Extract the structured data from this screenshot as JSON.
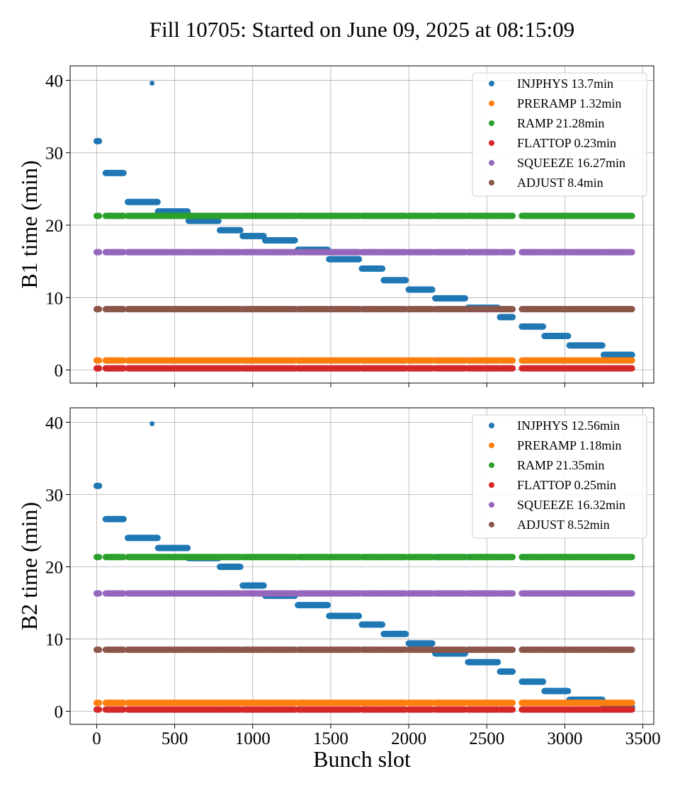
{
  "chart_data": {
    "type": "scatter",
    "title": "Fill 10705: Started on June 09, 2025 at 08:15:09",
    "xlabel": "Bunch slot",
    "xlim": [
      -170,
      3570
    ],
    "x_ticks": [
      0,
      500,
      1000,
      1500,
      2000,
      2500,
      3000,
      3500
    ],
    "grid": true,
    "legend_position": "top-right",
    "trains": [
      [
        0,
        15
      ],
      [
        58,
        172
      ],
      [
        200,
        390
      ],
      [
        394,
        582
      ],
      [
        590,
        780
      ],
      [
        790,
        920
      ],
      [
        936,
        1070
      ],
      [
        1080,
        1270
      ],
      [
        1290,
        1480
      ],
      [
        1490,
        1680
      ],
      [
        1700,
        1830
      ],
      [
        1840,
        1980
      ],
      [
        2000,
        2150
      ],
      [
        2170,
        2360
      ],
      [
        2380,
        2570
      ],
      [
        2585,
        2665
      ],
      [
        2725,
        2860
      ],
      [
        2870,
        3020
      ],
      [
        3030,
        3240
      ],
      [
        3250,
        3430
      ]
    ],
    "panels": [
      {
        "ylabel": "B1 time (min)",
        "ylim": [
          -1.8,
          42
        ],
        "y_ticks": [
          0,
          10,
          20,
          30,
          40
        ],
        "series": [
          {
            "name": "INJPHYS 13.7min",
            "color": "#1f77b4",
            "values": [
              31.6,
              27.2,
              23.2,
              21.9,
              20.6,
              19.3,
              18.5,
              17.9,
              16.6,
              15.3,
              14.0,
              12.4,
              11.1,
              9.9,
              8.6,
              7.3,
              6.0,
              4.7,
              3.4,
              2.1
            ],
            "outliers": [
              [
                355,
                39.6
              ]
            ]
          },
          {
            "name": "PRERAMP 1.32min",
            "color": "#ff7f0e",
            "values": [
              1.32
            ]
          },
          {
            "name": "RAMP 21.28min",
            "color": "#2ca02c",
            "values": [
              21.28
            ]
          },
          {
            "name": "FLATTOP 0.23min",
            "color": "#d62728",
            "values": [
              0.23
            ]
          },
          {
            "name": "SQUEEZE 16.27min",
            "color": "#9467bd",
            "values": [
              16.27
            ]
          },
          {
            "name": "ADJUST 8.4min",
            "color": "#8c564b",
            "values": [
              8.4
            ]
          }
        ]
      },
      {
        "ylabel": "B2 time (min)",
        "ylim": [
          -1.8,
          42
        ],
        "y_ticks": [
          0,
          10,
          20,
          30,
          40
        ],
        "series": [
          {
            "name": "INJPHYS 12.56min",
            "color": "#1f77b4",
            "values": [
              31.2,
              26.6,
              24.0,
              22.6,
              21.2,
              20.0,
              17.4,
              16.0,
              14.7,
              13.2,
              12.0,
              10.7,
              9.4,
              8.0,
              6.8,
              5.5,
              4.1,
              2.8,
              1.6,
              0.6
            ],
            "outliers": [
              [
                355,
                39.8
              ]
            ]
          },
          {
            "name": "PRERAMP 1.18min",
            "color": "#ff7f0e",
            "values": [
              1.18
            ]
          },
          {
            "name": "RAMP 21.35min",
            "color": "#2ca02c",
            "values": [
              21.35
            ]
          },
          {
            "name": "FLATTOP 0.25min",
            "color": "#d62728",
            "values": [
              0.25
            ]
          },
          {
            "name": "SQUEEZE 16.32min",
            "color": "#9467bd",
            "values": [
              16.32
            ]
          },
          {
            "name": "ADJUST 8.52min",
            "color": "#8c564b",
            "values": [
              8.52
            ]
          }
        ]
      }
    ]
  }
}
